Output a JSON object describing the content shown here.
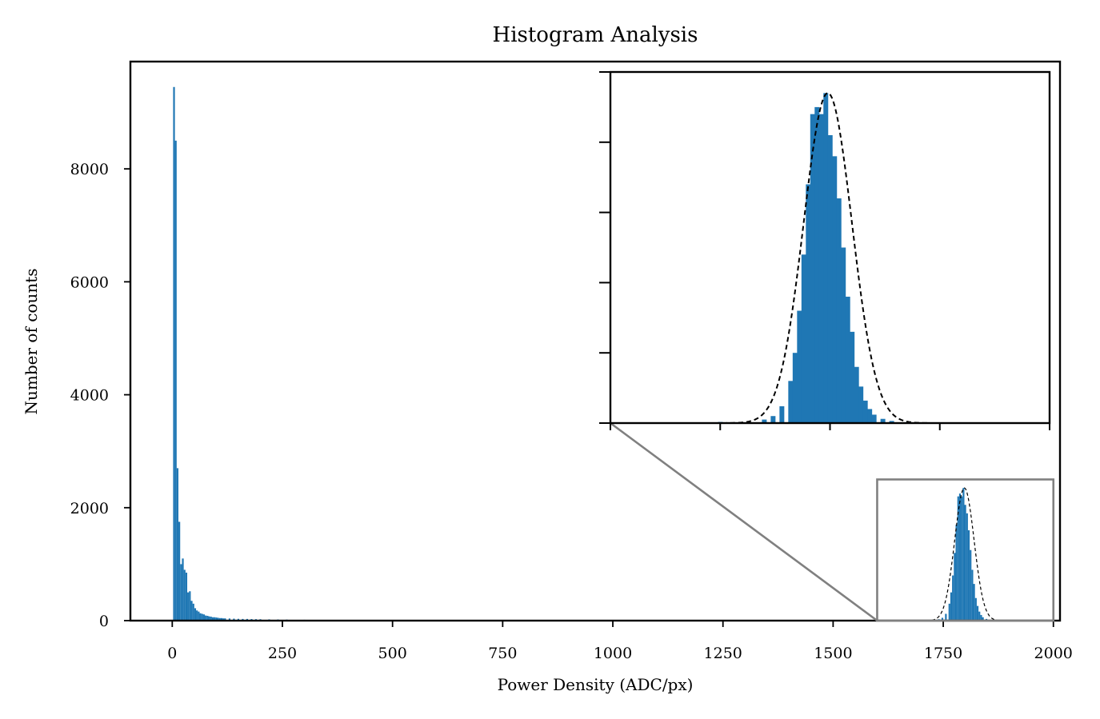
{
  "chart_data": [
    {
      "type": "bar",
      "role": "main-histogram",
      "title": "Histogram Analysis",
      "xlabel": "Power Density (ADC/px)",
      "ylabel": "Number of counts",
      "xlim": [
        -95,
        2015
      ],
      "ylim": [
        0,
        9900
      ],
      "xticks": [
        0,
        250,
        500,
        750,
        1000,
        1250,
        1500,
        1750,
        2000
      ],
      "xtick_labels": [
        "0",
        "250",
        "500",
        "750",
        "1000",
        "1250",
        "1500",
        "1750",
        "2000"
      ],
      "yticks": [
        0,
        2000,
        4000,
        6000,
        8000
      ],
      "ytick_labels": [
        "0",
        "2000",
        "4000",
        "6000",
        "8000"
      ],
      "bin_width": 4,
      "series": [
        {
          "name": "counts",
          "color": "#1f77b4",
          "bins": [
            [
              4,
              9450
            ],
            [
              8,
              8500
            ],
            [
              12,
              2700
            ],
            [
              16,
              1750
            ],
            [
              20,
              1000
            ],
            [
              24,
              1100
            ],
            [
              28,
              900
            ],
            [
              32,
              850
            ],
            [
              36,
              500
            ],
            [
              40,
              520
            ],
            [
              44,
              350
            ],
            [
              48,
              300
            ],
            [
              52,
              220
            ],
            [
              56,
              180
            ],
            [
              60,
              160
            ],
            [
              64,
              130
            ],
            [
              68,
              120
            ],
            [
              72,
              110
            ],
            [
              76,
              90
            ],
            [
              80,
              85
            ],
            [
              84,
              75
            ],
            [
              88,
              70
            ],
            [
              92,
              60
            ],
            [
              96,
              60
            ],
            [
              100,
              55
            ],
            [
              104,
              50
            ],
            [
              108,
              45
            ],
            [
              112,
              45
            ],
            [
              116,
              40
            ],
            [
              120,
              40
            ],
            [
              130,
              38
            ],
            [
              140,
              35
            ],
            [
              150,
              32
            ],
            [
              160,
              30
            ],
            [
              170,
              30
            ],
            [
              180,
              28
            ],
            [
              190,
              26
            ],
            [
              200,
              25
            ],
            [
              220,
              22
            ],
            [
              240,
              20
            ],
            [
              260,
              18
            ],
            [
              300,
              15
            ],
            [
              350,
              12
            ],
            [
              400,
              10
            ],
            [
              500,
              8
            ],
            [
              600,
              6
            ],
            [
              700,
              5
            ],
            [
              800,
              4
            ],
            [
              900,
              3
            ],
            [
              1000,
              3
            ],
            [
              1200,
              2
            ],
            [
              1400,
              2
            ],
            [
              1600,
              3
            ],
            [
              1700,
              8
            ],
            [
              1740,
              25
            ],
            [
              1748,
              50
            ],
            [
              1756,
              120
            ],
            [
              1764,
              300
            ],
            [
              1768,
              500
            ],
            [
              1772,
              800
            ],
            [
              1776,
              1200
            ],
            [
              1780,
              1700
            ],
            [
              1784,
              2200
            ],
            [
              1788,
              2250
            ],
            [
              1792,
              2200
            ],
            [
              1796,
              2350
            ],
            [
              1800,
              2050
            ],
            [
              1804,
              1900
            ],
            [
              1808,
              1600
            ],
            [
              1812,
              1250
            ],
            [
              1816,
              900
            ],
            [
              1820,
              650
            ],
            [
              1824,
              400
            ],
            [
              1828,
              260
            ],
            [
              1832,
              160
            ],
            [
              1836,
              100
            ],
            [
              1840,
              60
            ],
            [
              1848,
              30
            ],
            [
              1856,
              15
            ],
            [
              1870,
              6
            ]
          ]
        },
        {
          "name": "gaussian fit",
          "style": "dashed",
          "color": "#000000",
          "mu": 1798,
          "sigma": 22,
          "amplitude": 2350
        }
      ]
    },
    {
      "type": "bar",
      "role": "inset-zoom",
      "xlim": [
        1600,
        2000
      ],
      "ylim": [
        0,
        2500
      ],
      "zoom_box": {
        "x": [
          1600,
          2000
        ],
        "y": [
          0,
          2500
        ]
      },
      "note": "inset has unlabeled ticks"
    }
  ]
}
